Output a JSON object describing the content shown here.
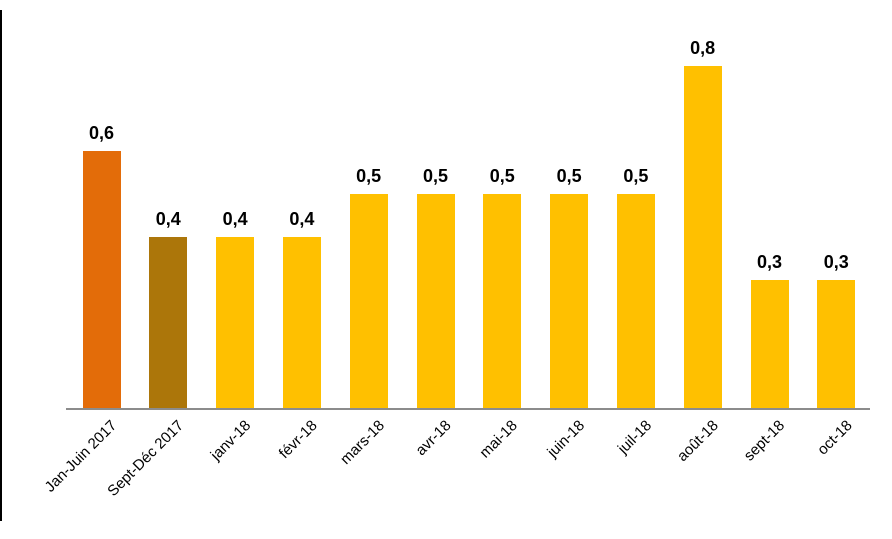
{
  "chart": {
    "background_color": "#ffffff",
    "axis_color": "#8c8c8c",
    "text_color": "#000000",
    "left_border_color": "#000000",
    "chart_data": {
      "type": "bar",
      "title": "",
      "xlabel": "",
      "ylabel": "",
      "ylim": [
        0,
        0.95
      ],
      "grid": false,
      "legend": "none",
      "decimal_separator": ",",
      "categories": [
        "Jan-Juin 2017",
        "Sept-Déc 2017",
        "janv-18",
        "févr-18",
        "mars-18",
        "avr-18",
        "mai-18",
        "juin-18",
        "juil-18",
        "août-18",
        "sept-18",
        "oct-18"
      ],
      "values": [
        0.6,
        0.4,
        0.4,
        0.4,
        0.5,
        0.5,
        0.5,
        0.5,
        0.5,
        0.8,
        0.3,
        0.3
      ],
      "value_labels": [
        "0,6",
        "0,4",
        "0,4",
        "0,4",
        "0,5",
        "0,5",
        "0,5",
        "0,5",
        "0,5",
        "0,8",
        "0,3",
        "0,3"
      ],
      "bar_colors": [
        "#E36C09",
        "#AC760A",
        "#FFC000",
        "#FFC000",
        "#FFC000",
        "#FFC000",
        "#FFC000",
        "#FFC000",
        "#FFC000",
        "#FFC000",
        "#FFC000",
        "#FFC000"
      ],
      "default_bar_color": "#FFC000"
    }
  }
}
